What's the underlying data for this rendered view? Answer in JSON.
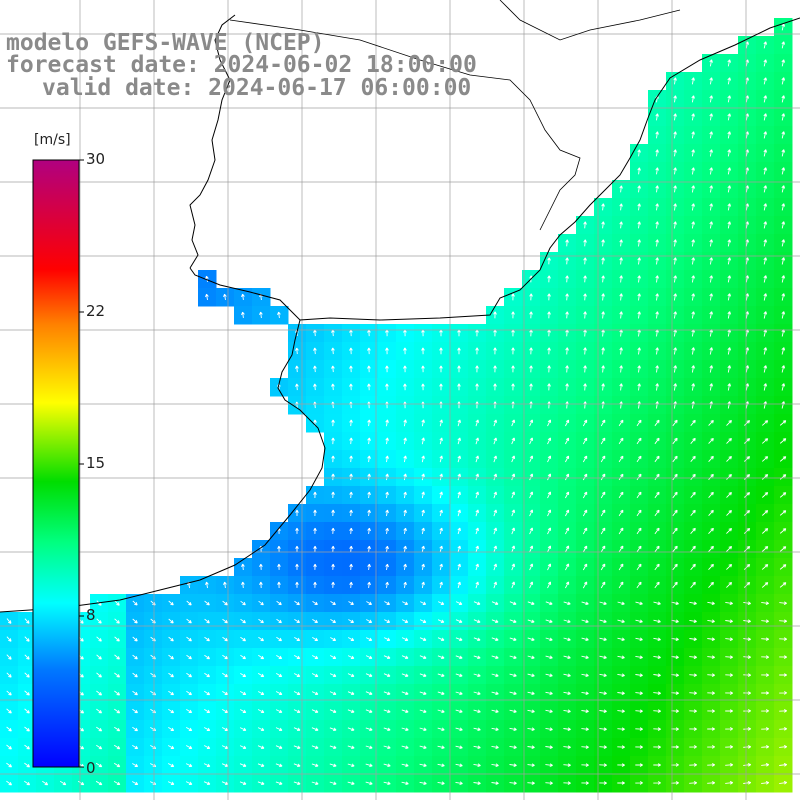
{
  "title": {
    "model_line": "modelo GEFS-WAVE (NCEP)",
    "forecast_line": "forecast date: 2024-06-02 18:00:00",
    "valid_line": "valid date: 2024-06-17 06:00:00"
  },
  "colorbar": {
    "unit": "[m/s]",
    "ticks": [
      "30",
      "22",
      "15",
      "8",
      "0"
    ],
    "min": 0,
    "max": 30,
    "colors": [
      "#0000ff",
      "#0078ff",
      "#00ffff",
      "#00ff80",
      "#00dd00",
      "#ffff00",
      "#ff8000",
      "#ff0000",
      "#b00080"
    ]
  },
  "map": {
    "land_color": "#ffffff",
    "grid_color": "#a0a0a0",
    "coast_color": "#000000",
    "vector_color": "#ffffff",
    "field": "wind speed and direction"
  }
}
